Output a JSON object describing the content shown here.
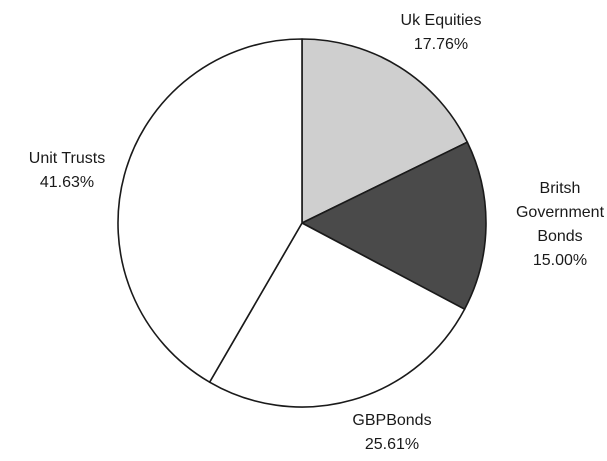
{
  "chart_data": {
    "type": "pie",
    "slices": [
      {
        "label_lines": [
          "Uk Equities"
        ],
        "value": 17.76,
        "value_label": "17.76%",
        "color": "#cfcfcf"
      },
      {
        "label_lines": [
          "Britsh",
          "Government",
          "Bonds"
        ],
        "value": 15.0,
        "value_label": "15.00%",
        "color": "#4a4a4a"
      },
      {
        "label_lines": [
          "GBPBonds"
        ],
        "value": 25.61,
        "value_label": "25.61%",
        "color": "#ffffff"
      },
      {
        "label_lines": [
          "Unit Trusts"
        ],
        "value": 41.63,
        "value_label": "41.63%",
        "color": "#ffffff"
      }
    ],
    "start_angle": "12 o'clock",
    "direction": "clockwise",
    "legend": "none",
    "outline_color": "#1a1a1a"
  }
}
